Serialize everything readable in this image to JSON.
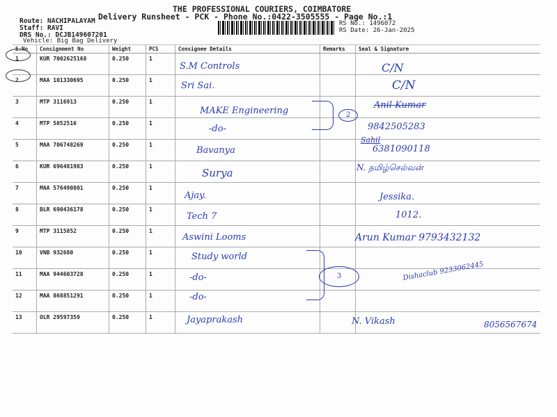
{
  "header": {
    "company": "THE PROFESSIONAL COURIERS, COIMBATORE",
    "subtitle": "Delivery Runsheet - PCK - Phone No.:0422-3505555 - Page No.:1",
    "route": "Route: NACHIPALAYAM",
    "staff": "Staff: RAVI",
    "drs": "DRS No.: DCJB149607201",
    "vehicle": "Vehicle: Big Bag Delivery",
    "rs_no": "RS No.: 1496072",
    "rs_date": "RS Date: 26-Jan-2025"
  },
  "table": {
    "columns": [
      "S.No",
      "Consignment No",
      "Weight",
      "PCS",
      "Consignee Details",
      "Remarks",
      "Seal & Signature"
    ],
    "rows": [
      {
        "sno": "1",
        "consignment": "KUR 7002625168",
        "weight": "0.250",
        "pcs": "1"
      },
      {
        "sno": "2",
        "consignment": "MAA 101330695",
        "weight": "0.250",
        "pcs": "1"
      },
      {
        "sno": "3",
        "consignment": "MTP 3116913",
        "weight": "0.250",
        "pcs": "1"
      },
      {
        "sno": "4",
        "consignment": "MTP 5052516",
        "weight": "0.250",
        "pcs": "1"
      },
      {
        "sno": "5",
        "consignment": "MAA 706748269",
        "weight": "0.250",
        "pcs": "1"
      },
      {
        "sno": "6",
        "consignment": "KUR 696481983",
        "weight": "0.250",
        "pcs": "1"
      },
      {
        "sno": "7",
        "consignment": "MAA 576490801",
        "weight": "0.250",
        "pcs": "1"
      },
      {
        "sno": "8",
        "consignment": "BLR 690436178",
        "weight": "0.250",
        "pcs": "1"
      },
      {
        "sno": "9",
        "consignment": "MTP 3115852",
        "weight": "0.250",
        "pcs": "1"
      },
      {
        "sno": "10",
        "consignment": "VNB 932680",
        "weight": "0.250",
        "pcs": "1"
      },
      {
        "sno": "11",
        "consignment": "MAA 944603728",
        "weight": "0.250",
        "pcs": "1"
      },
      {
        "sno": "12",
        "consignment": "MAA 868851291",
        "weight": "0.250",
        "pcs": "1"
      },
      {
        "sno": "13",
        "consignment": "OLR 29597359",
        "weight": "0.250",
        "pcs": "1"
      }
    ]
  },
  "handwriting": {
    "consignees": [
      "S.M Controls",
      "Sri Sai.",
      "MAKE Engineering",
      "-do-",
      "Bavanya",
      "Surya",
      "Ajay.",
      "Tech 7",
      "Aswini Looms",
      "Study world",
      "-do-",
      "-do-",
      "Jayaprakash"
    ],
    "signatures": [
      "C/N",
      "C/N",
      "Anil Kumar",
      "9842505283",
      "Sahil",
      "6381090118",
      "N. தமிழ்செல்வன்",
      "Jessika.",
      "1012.",
      "Arun Kumar 9793432132",
      "Dishaclub 9233062445",
      "N. Vikash",
      "8056567674"
    ],
    "group_marks": [
      "2",
      "3"
    ]
  },
  "colors": {
    "ink": "#2b3bb0",
    "print": "#222222"
  }
}
